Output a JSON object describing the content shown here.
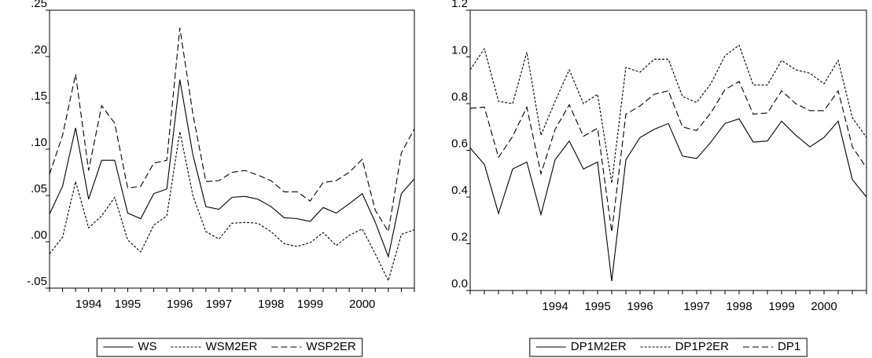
{
  "chart_data": [
    {
      "type": "line",
      "categories": [
        null,
        null,
        null,
        "1994",
        null,
        null,
        "1995",
        null,
        null,
        null,
        "1996",
        null,
        null,
        "1997",
        null,
        null,
        null,
        "1998",
        null,
        null,
        "1999",
        null,
        null,
        null,
        "2000",
        null,
        null,
        null,
        null
      ],
      "ylim": [
        -0.05,
        0.25
      ],
      "yticks": [
        {
          "value": 0.25,
          "label": ".25"
        },
        {
          "value": 0.2,
          "label": ".20"
        },
        {
          "value": 0.15,
          "label": ".15"
        },
        {
          "value": 0.1,
          "label": ".10"
        },
        {
          "value": 0.05,
          "label": ".05"
        },
        {
          "value": 0,
          "label": ".00"
        },
        {
          "value": -0.05,
          "label": "-.05"
        }
      ],
      "grid": false,
      "series": [
        {
          "name": "WS",
          "color": "#000000",
          "dash": "solid",
          "values": [
            0.03,
            0.06,
            0.123,
            0.046,
            0.088,
            0.088,
            0.031,
            0.025,
            0.052,
            0.057,
            0.175,
            0.094,
            0.038,
            0.035,
            0.048,
            0.049,
            0.046,
            0.038,
            0.026,
            0.025,
            0.022,
            0.037,
            0.031,
            0.041,
            0.052,
            0.021,
            -0.016,
            0.052,
            0.068
          ]
        },
        {
          "name": "WSM2ER",
          "color": "#000000",
          "dash": "short",
          "values": [
            -0.013,
            0.005,
            0.065,
            0.015,
            0.028,
            0.048,
            0.002,
            -0.011,
            0.018,
            0.028,
            0.119,
            0.05,
            0.011,
            0.003,
            0.02,
            0.021,
            0.02,
            0.011,
            -0.002,
            -0.005,
            -0.001,
            0.01,
            -0.004,
            0.007,
            0.014,
            -0.013,
            -0.042,
            0.008,
            0.013
          ]
        },
        {
          "name": "WSP2ER",
          "color": "#000000",
          "dash": "long",
          "values": [
            0.073,
            0.115,
            0.181,
            0.077,
            0.147,
            0.128,
            0.058,
            0.06,
            0.085,
            0.088,
            0.231,
            0.138,
            0.065,
            0.066,
            0.075,
            0.077,
            0.072,
            0.066,
            0.054,
            0.054,
            0.044,
            0.064,
            0.066,
            0.075,
            0.089,
            0.034,
            0.011,
            0.096,
            0.122
          ]
        }
      ]
    },
    {
      "type": "line",
      "categories": [
        null,
        null,
        null,
        null,
        null,
        null,
        "1994",
        null,
        null,
        "1995",
        null,
        null,
        "1996",
        null,
        null,
        null,
        "1997",
        null,
        null,
        "1998",
        null,
        null,
        "1999",
        null,
        null,
        "2000",
        null,
        null,
        null
      ],
      "ylim": [
        0,
        1.2
      ],
      "yticks": [
        1.2,
        {
          "value": 1,
          "label": "1.0"
        },
        0.8,
        0.6,
        0.4,
        0.2,
        {
          "value": 0,
          "label": "0.0"
        }
      ],
      "grid": false,
      "series": [
        {
          "name": "DP1M2ER",
          "color": "#000000",
          "dash": "solid",
          "values": [
            0.61,
            0.54,
            0.33,
            0.52,
            0.55,
            0.325,
            0.56,
            0.64,
            0.52,
            0.55,
            0.04,
            0.56,
            0.655,
            0.69,
            0.715,
            0.575,
            0.565,
            0.635,
            0.715,
            0.735,
            0.635,
            0.64,
            0.725,
            0.665,
            0.615,
            0.655,
            0.725,
            0.475,
            0.4
          ]
        },
        {
          "name": "DP1P2ER",
          "color": "#000000",
          "dash": "short",
          "values": [
            0.945,
            1.035,
            0.81,
            0.8,
            1.02,
            0.665,
            0.81,
            0.945,
            0.8,
            0.84,
            0.46,
            0.955,
            0.935,
            0.99,
            0.99,
            0.83,
            0.805,
            0.885,
            1.005,
            1.05,
            0.88,
            0.88,
            0.985,
            0.945,
            0.93,
            0.885,
            0.985,
            0.74,
            0.655
          ]
        },
        {
          "name": "DP1",
          "color": "#000000",
          "dash": "long",
          "values": [
            0.78,
            0.785,
            0.57,
            0.66,
            0.785,
            0.5,
            0.69,
            0.795,
            0.66,
            0.695,
            0.25,
            0.755,
            0.79,
            0.84,
            0.855,
            0.7,
            0.685,
            0.76,
            0.86,
            0.895,
            0.755,
            0.76,
            0.855,
            0.8,
            0.77,
            0.77,
            0.855,
            0.615,
            0.525
          ]
        }
      ]
    }
  ]
}
